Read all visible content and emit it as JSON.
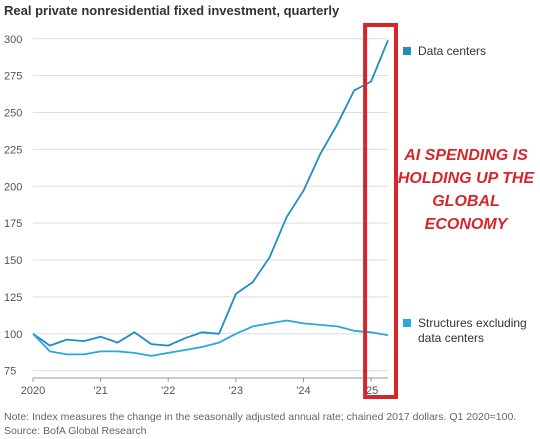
{
  "chart_data": {
    "type": "line",
    "title": "Real private nonresidential fixed investment, quarterly",
    "xlabel": "",
    "ylabel": "",
    "x_tick_labels": [
      "2020",
      "'21",
      "'22",
      "'23",
      "'24",
      "'25"
    ],
    "y_ticks": [
      75,
      100,
      125,
      150,
      175,
      200,
      225,
      250,
      275,
      300
    ],
    "ylim": [
      70,
      310
    ],
    "x": [
      "2020Q1",
      "2020Q2",
      "2020Q3",
      "2020Q4",
      "2021Q1",
      "2021Q2",
      "2021Q3",
      "2021Q4",
      "2022Q1",
      "2022Q2",
      "2022Q3",
      "2022Q4",
      "2023Q1",
      "2023Q2",
      "2023Q3",
      "2023Q4",
      "2024Q1",
      "2024Q2",
      "2024Q3",
      "2024Q4",
      "2025Q1",
      "2025Q2"
    ],
    "series": [
      {
        "name": "Data centers",
        "color": "#1f8ebf",
        "values": [
          100,
          92,
          96,
          95,
          98,
          94,
          101,
          93,
          92,
          97,
          101,
          100,
          127,
          135,
          152,
          179,
          197,
          222,
          242,
          265,
          271,
          299
        ]
      },
      {
        "name": "Structures excluding data centers",
        "color": "#2aa7dc",
        "values": [
          100,
          88,
          86,
          86,
          88,
          88,
          87,
          85,
          87,
          89,
          91,
          94,
          100,
          105,
          107,
          109,
          107,
          106,
          105,
          102,
          101,
          99
        ]
      }
    ],
    "legend_placement": "right",
    "grid": "horizontal",
    "annotations": [
      {
        "text_lines": [
          "AI SPENDING IS",
          "HOLDING UP THE",
          "GLOBAL",
          "ECONOMY"
        ],
        "color": "#d7262b"
      }
    ],
    "highlight_box_color": "#d7262b",
    "notes": [
      "Note: Index measures the change in the seasonally adjusted annual rate; chained 2017 dollars. Q1 2020=100.",
      "Source: BofA Global Research"
    ]
  }
}
